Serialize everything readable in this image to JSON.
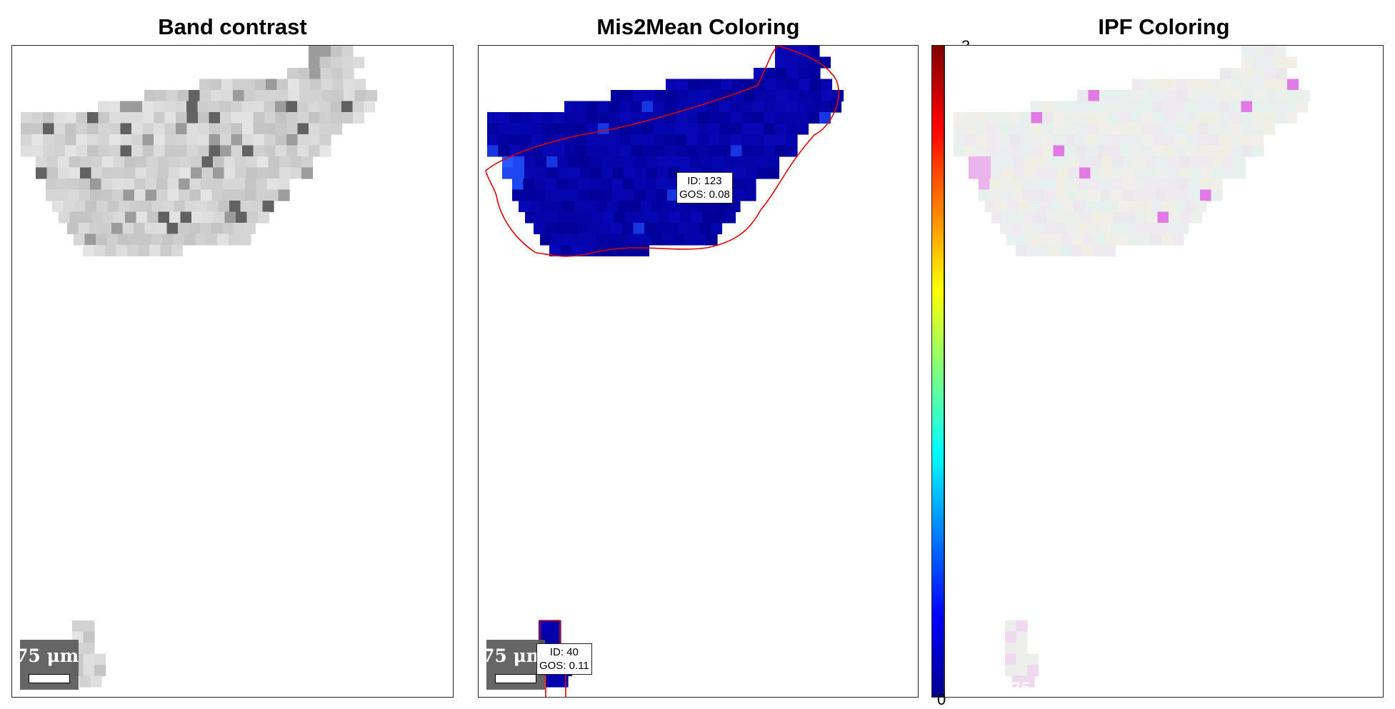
{
  "panels": {
    "band_contrast": {
      "title": "Band contrast",
      "scalebar_label": "75 μm"
    },
    "mis2mean": {
      "title": "Mis2Mean Coloring",
      "scalebar_label": "75 μm",
      "grain_labels": [
        {
          "id_text": "ID: 123",
          "gos_text": "GOS: 0.08"
        },
        {
          "id_text": "ID: 40",
          "gos_text": "GOS: 0.11"
        }
      ]
    },
    "ipf": {
      "title": "IPF Coloring",
      "scalebar_label": "75 μm"
    }
  },
  "colorbar": {
    "min_label": "0",
    "max_label": "3",
    "colormap": "jet"
  },
  "colors": {
    "boundary": "#e00000",
    "mis2mean_base": "#0a0aa8"
  }
}
